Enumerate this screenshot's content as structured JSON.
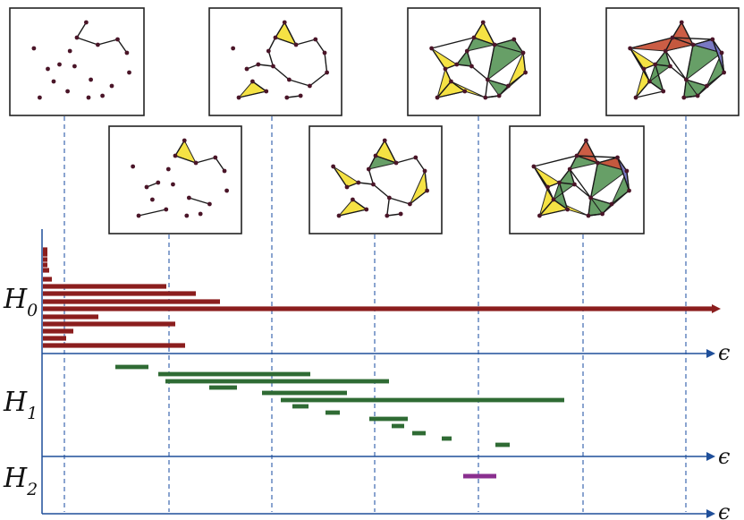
{
  "labels": {
    "h0": "H",
    "h0_sub": "0",
    "h1": "H",
    "h1_sub": "1",
    "h2": "H",
    "h2_sub": "2",
    "epsilon": "ϵ"
  },
  "colors": {
    "h0_bar": "#8b1e1e",
    "h1_bar": "#2f6b34",
    "h2_bar": "#8a2f8f",
    "axis": "#1f4f9a",
    "guide": "#2a5aa8",
    "panel_border": "#222222",
    "vertex": "#4a1528",
    "edge": "#1a1a1a",
    "tri_yellow": "#f5e13a",
    "tri_green": "#5f9a5f",
    "tri_red": "#c9553c",
    "tri_salmon": "#e08a6a",
    "tri_blue": "#7a78c8",
    "tri_olive": "#9a7a3a"
  },
  "filtration_stages": 7
}
